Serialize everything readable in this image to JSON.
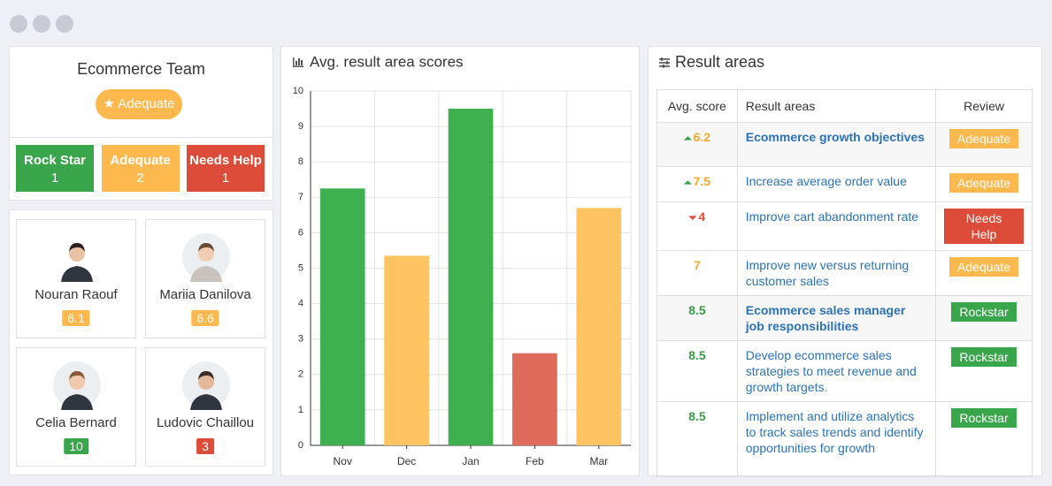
{
  "team": {
    "title": "Ecommerce Team",
    "status": "Adequate",
    "counts": [
      {
        "label": "Rock Star",
        "value": 1,
        "color": "#3aa64c"
      },
      {
        "label": "Adequate",
        "value": 2,
        "color": "#fdb94e"
      },
      {
        "label": "Needs Help",
        "value": 1,
        "color": "#dd4b39"
      }
    ]
  },
  "members": [
    {
      "name": "Nouran Raouf",
      "score": 6.1,
      "color": "#fdb94e"
    },
    {
      "name": "Mariia Danilova",
      "score": 6.6,
      "color": "#fdb94e"
    },
    {
      "name": "Celia Bernard",
      "score": 10,
      "color": "#3aa64c"
    },
    {
      "name": "Ludovic Chaillou",
      "score": 3,
      "color": "#dd4b39"
    }
  ],
  "chart_data": {
    "type": "bar",
    "title": "Avg. result area scores",
    "categories": [
      "Nov",
      "Dec",
      "Jan",
      "Feb",
      "Mar"
    ],
    "values": [
      7.25,
      5.35,
      9.5,
      2.6,
      6.7
    ],
    "colors": [
      "#3eb050",
      "#fec462",
      "#3eb050",
      "#e06a5b",
      "#fec462"
    ],
    "ylim": [
      0,
      10
    ],
    "yticks": [
      0,
      1,
      2,
      3,
      4,
      5,
      6,
      7,
      8,
      9,
      10
    ],
    "grid": true
  },
  "result_areas": {
    "title": "Result areas",
    "headers": [
      "Avg. score",
      "Result areas",
      "Review"
    ],
    "rows": [
      {
        "score": 6.2,
        "area": "Ecommerce growth objectives",
        "review": "Adequate",
        "score_color": "#f5a82a",
        "review_color": "#fdb94e"
      },
      {
        "score": 7.5,
        "area": "Increase average order value",
        "review": "Adequate",
        "score_color": "#f5a82a",
        "review_color": "#fdb94e"
      },
      {
        "score": 4,
        "area": "Improve cart abandonment rate",
        "review": "Needs Help",
        "score_color": "#dd4b39",
        "review_color": "#dd4b39"
      },
      {
        "score": 7,
        "area": "Improve new versus returning customer sales",
        "review": "Adequate",
        "score_color": "#f5a82a",
        "review_color": "#fdb94e"
      },
      {
        "score": 8.5,
        "area": "Ecommerce sales manager job responsibilities",
        "review": "Rockstar",
        "score_color": "#3a9a48",
        "review_color": "#3aa64c"
      },
      {
        "score": 8.5,
        "area": "Develop ecommerce sales strategies to meet revenue and growth targets.",
        "review": "Rockstar",
        "score_color": "#3a9a48",
        "review_color": "#3aa64c"
      },
      {
        "score": 8.5,
        "area": "Implement and utilize analytics to track sales trends and identify opportunities for growth",
        "review": "Rockstar",
        "score_color": "#3a9a48",
        "review_color": "#3aa64c"
      }
    ]
  }
}
